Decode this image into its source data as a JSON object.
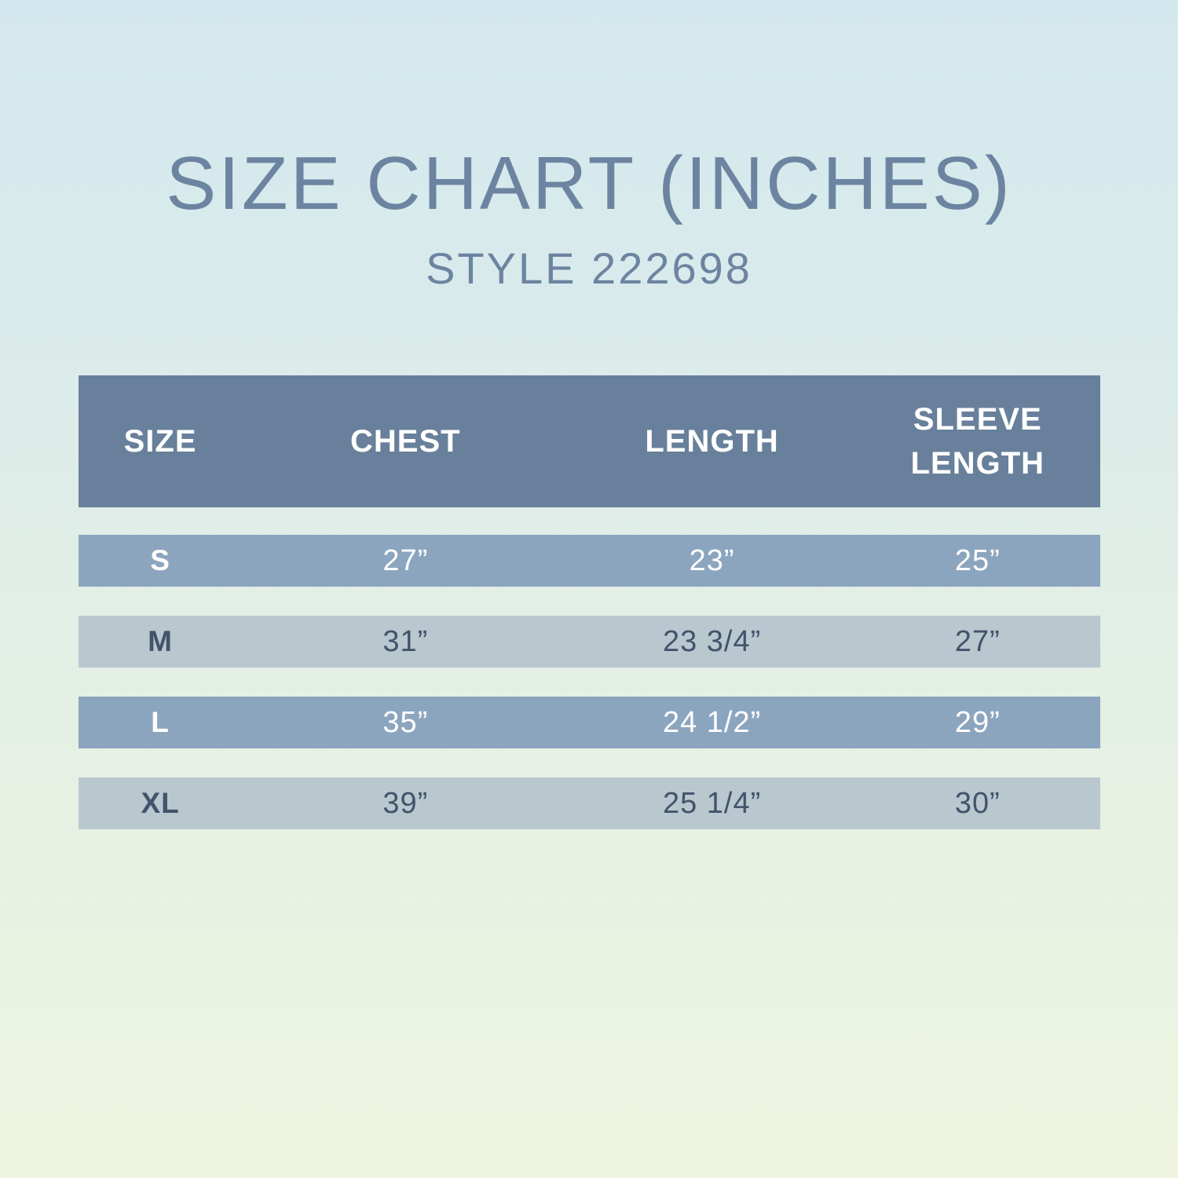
{
  "header": {
    "title": "SIZE CHART (INCHES)",
    "subtitle": "STYLE 222698"
  },
  "table": {
    "columns": [
      "SIZE",
      "CHEST",
      "LENGTH",
      "SLEEVE LENGTH"
    ],
    "rows": [
      {
        "size": "S",
        "chest": "27”",
        "length": "23”",
        "sleeve_length": "25”"
      },
      {
        "size": "M",
        "chest": "31”",
        "length": "23 3/4”",
        "sleeve_length": "27”"
      },
      {
        "size": "L",
        "chest": "35”",
        "length": "24 1/2”",
        "sleeve_length": "29”"
      },
      {
        "size": "XL",
        "chest": "39”",
        "length": "25 1/4”",
        "sleeve_length": "30”"
      }
    ]
  },
  "chart_data": {
    "type": "table",
    "title": "SIZE CHART (INCHES)",
    "subtitle": "STYLE 222698",
    "columns": [
      "SIZE",
      "CHEST",
      "LENGTH",
      "SLEEVE LENGTH"
    ],
    "rows": [
      [
        "S",
        "27”",
        "23”",
        "25”"
      ],
      [
        "M",
        "31”",
        "23 3/4”",
        "27”"
      ],
      [
        "L",
        "35”",
        "24 1/2”",
        "29”"
      ],
      [
        "XL",
        "39”",
        "25 1/4”",
        "30”"
      ]
    ]
  },
  "colors": {
    "bg_top": "#d3e8ee",
    "bg_bottom": "#eef4e0",
    "heading_text": "#6d84a1",
    "header_bg": "#68809b",
    "header_text": "#ffffff",
    "row_blue_bg": "#8ca5bf",
    "row_blue_text": "#ffffff",
    "row_gray_bg": "#b9c7cf",
    "row_gray_text": "#42536b"
  }
}
